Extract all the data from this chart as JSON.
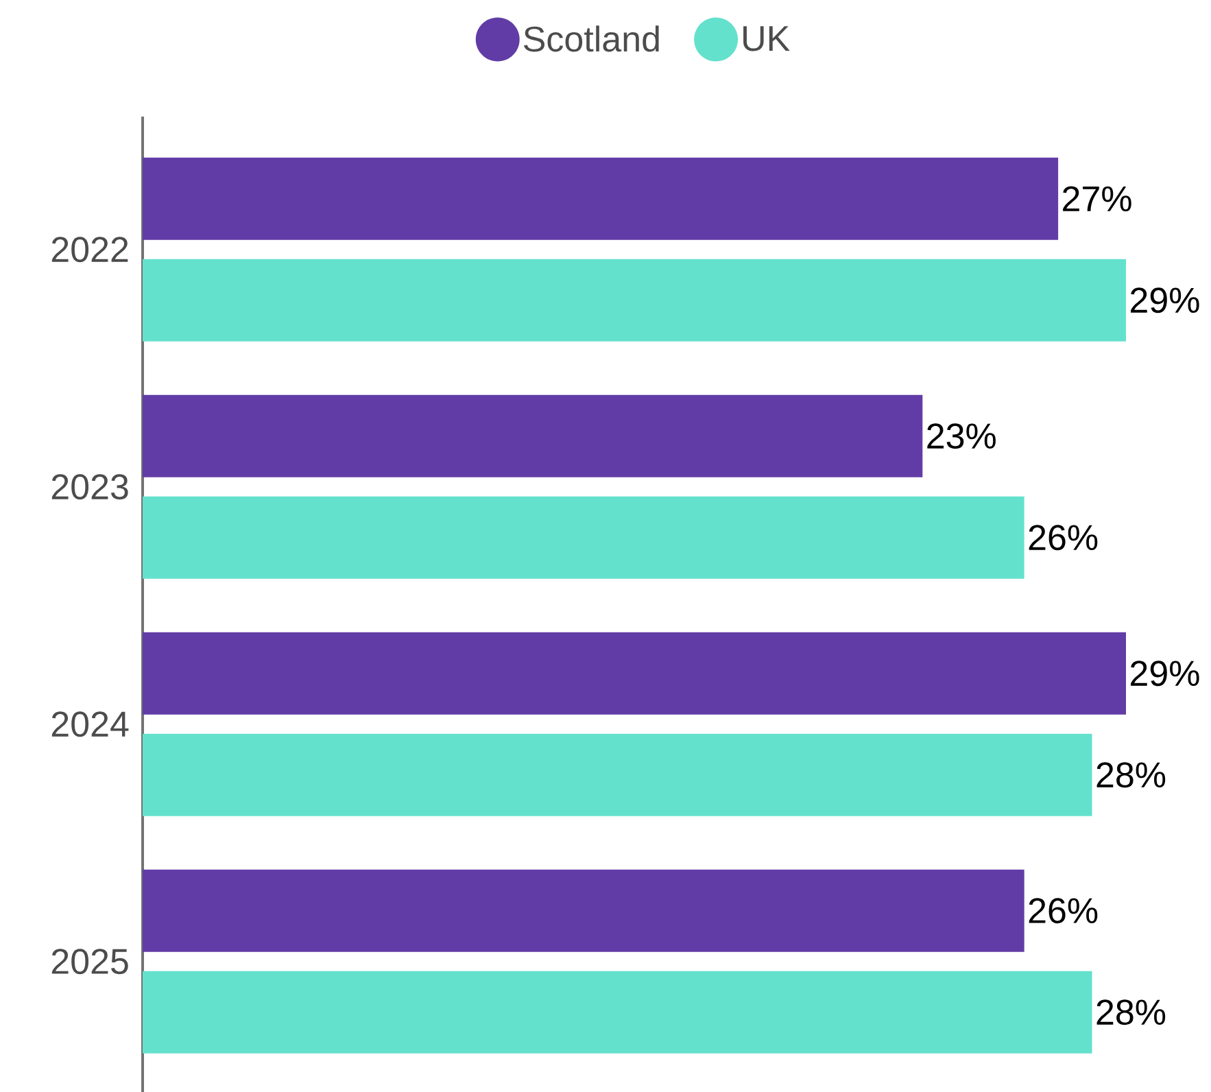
{
  "chart_data": {
    "type": "bar",
    "orientation": "horizontal",
    "categories": [
      "2022",
      "2023",
      "2024",
      "2025"
    ],
    "series": [
      {
        "name": "Scotland",
        "color": "#613ca6",
        "values": [
          27,
          23,
          29,
          26
        ],
        "value_labels": [
          "27%",
          "23%",
          "29%",
          "26%"
        ]
      },
      {
        "name": "UK",
        "color": "#64e1cd",
        "values": [
          29,
          26,
          28,
          28
        ],
        "value_labels": [
          "29%",
          "26%",
          "28%",
          "28%"
        ]
      }
    ],
    "legend": "top"
  }
}
